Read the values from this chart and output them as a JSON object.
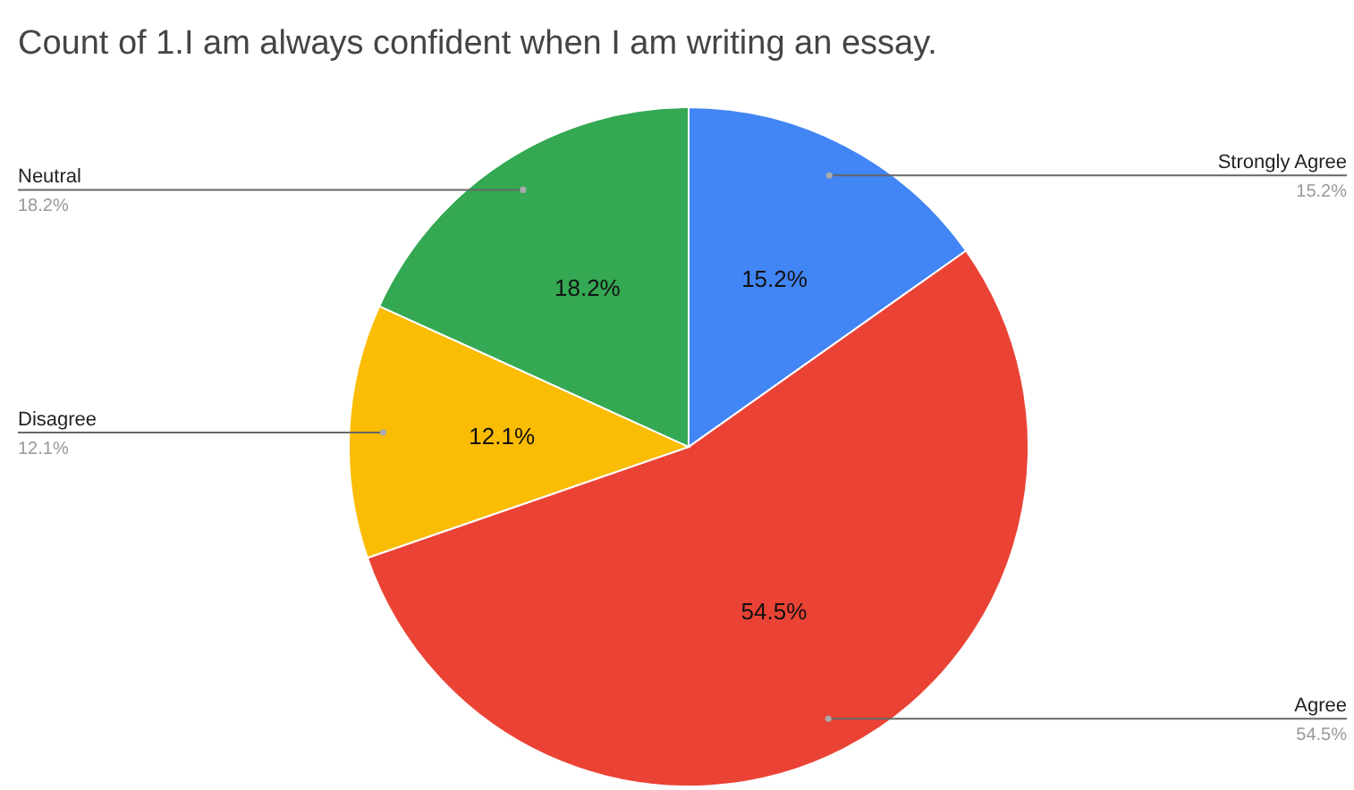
{
  "chart_data": {
    "type": "pie",
    "title": "Count of 1.I am always confident when I am writing an essay.",
    "categories": [
      "Strongly Agree",
      "Agree",
      "Disagree",
      "Neutral"
    ],
    "values": [
      15.2,
      54.5,
      12.1,
      18.2
    ],
    "colors": [
      "#4285f4",
      "#ea4335",
      "#fbbc04",
      "#34a853"
    ],
    "value_labels": [
      "15.2%",
      "54.5%",
      "12.1%",
      "18.2%"
    ]
  }
}
